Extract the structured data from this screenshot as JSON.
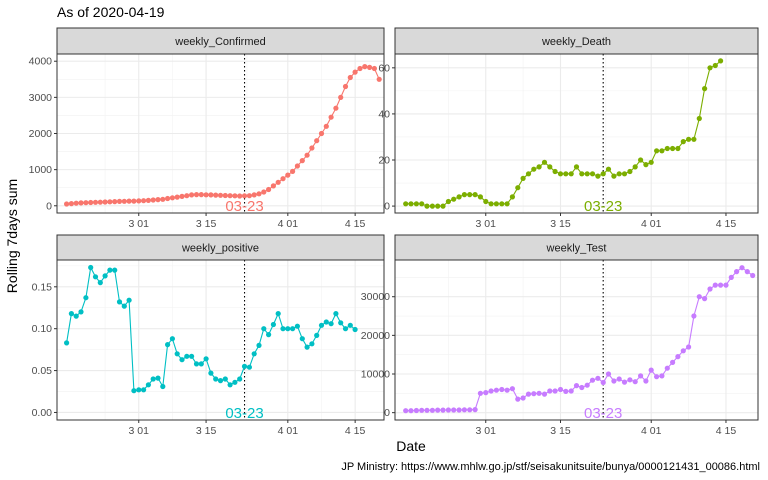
{
  "title": "As of 2020-04-19",
  "xlabel": "Date",
  "ylabel": "Rolling 7days sum",
  "caption": "JP Ministry: https://www.mhlw.go.jp/stf/seisakunitsuite/bunya/0000121431_00086.html",
  "chart_data": [
    {
      "type": "line",
      "title": "weekly_Confirmed",
      "color": "#F8766D",
      "x_start": "2020-02-15",
      "xlim": [
        "2020-02-13",
        "2020-04-21"
      ],
      "x_ticks": [
        "3 01",
        "3 15",
        "4 01",
        "4 15"
      ],
      "x_tick_dates": [
        "2020-03-01",
        "2020-03-15",
        "2020-04-01",
        "2020-04-15"
      ],
      "ylim": [
        -200,
        4200
      ],
      "y_ticks": [
        0,
        1000,
        2000,
        3000,
        4000
      ],
      "y_tick_labels": [
        "0",
        "1000",
        "2000",
        "3000",
        "4000"
      ],
      "vline_date": "2020-03-23",
      "vline_label": "03-23",
      "values": [
        50,
        60,
        70,
        80,
        85,
        90,
        95,
        100,
        105,
        110,
        115,
        120,
        125,
        130,
        130,
        135,
        140,
        150,
        160,
        170,
        180,
        200,
        220,
        240,
        260,
        280,
        300,
        310,
        310,
        305,
        300,
        295,
        290,
        285,
        280,
        275,
        270,
        275,
        280,
        300,
        330,
        380,
        450,
        550,
        650,
        750,
        850,
        950,
        1100,
        1250,
        1400,
        1600,
        1800,
        2000,
        2200,
        2450,
        2700,
        3000,
        3300,
        3550,
        3700,
        3800,
        3850,
        3830,
        3800,
        3500
      ]
    },
    {
      "type": "line",
      "title": "weekly_Death",
      "color": "#7CAE00",
      "x_start": "2020-02-15",
      "xlim": [
        "2020-02-13",
        "2020-04-21"
      ],
      "x_ticks": [
        "3 01",
        "3 15",
        "4 01",
        "4 15"
      ],
      "x_tick_dates": [
        "2020-03-01",
        "2020-03-15",
        "2020-04-01",
        "2020-04-15"
      ],
      "ylim": [
        -3,
        66
      ],
      "y_ticks": [
        0,
        20,
        40,
        60
      ],
      "y_tick_labels": [
        "0",
        "20",
        "40",
        "60"
      ],
      "vline_date": "2020-03-23",
      "vline_label": "03-23",
      "values": [
        1,
        1,
        1,
        1,
        0,
        0,
        0,
        0,
        2,
        3,
        4,
        5,
        5,
        5,
        4,
        2,
        1,
        1,
        1,
        1,
        4,
        8,
        12,
        14,
        16,
        17,
        19,
        17,
        15,
        14,
        14,
        14,
        17,
        14,
        14,
        14,
        13,
        14,
        16,
        13,
        14,
        14,
        15,
        17,
        20,
        18,
        19,
        24,
        24,
        25,
        25,
        25,
        28,
        29,
        29,
        38,
        51,
        60,
        61,
        63
      ]
    },
    {
      "type": "line",
      "title": "weekly_positive",
      "color": "#00BFC4",
      "x_start": "2020-02-15",
      "xlim": [
        "2020-02-13",
        "2020-04-21"
      ],
      "x_ticks": [
        "3 01",
        "3 15",
        "4 01",
        "4 15"
      ],
      "x_tick_dates": [
        "2020-03-01",
        "2020-03-15",
        "2020-04-01",
        "2020-04-15"
      ],
      "ylim": [
        -0.009,
        0.182
      ],
      "y_ticks": [
        0,
        0.05,
        0.1,
        0.15
      ],
      "y_tick_labels": [
        "0.00",
        "0.05",
        "0.10",
        "0.15"
      ],
      "vline_date": "2020-03-23",
      "vline_label": "03-23",
      "values": [
        0.083,
        0.118,
        0.115,
        0.12,
        0.137,
        0.173,
        0.162,
        0.155,
        0.163,
        0.17,
        0.17,
        0.132,
        0.127,
        0.134,
        0.026,
        0.027,
        0.027,
        0.033,
        0.04,
        0.041,
        0.031,
        0.081,
        0.088,
        0.07,
        0.063,
        0.067,
        0.067,
        0.058,
        0.058,
        0.064,
        0.047,
        0.04,
        0.038,
        0.04,
        0.033,
        0.036,
        0.04,
        0.055,
        0.054,
        0.07,
        0.08,
        0.1,
        0.093,
        0.105,
        0.118,
        0.1,
        0.1,
        0.1,
        0.103,
        0.088,
        0.078,
        0.082,
        0.092,
        0.104,
        0.108,
        0.106,
        0.118,
        0.107,
        0.1,
        0.104,
        0.099
      ]
    },
    {
      "type": "line",
      "title": "weekly_Test",
      "color": "#C77CFF",
      "x_start": "2020-02-15",
      "xlim": [
        "2020-02-13",
        "2020-04-21"
      ],
      "x_ticks": [
        "3 01",
        "3 15",
        "4 01",
        "4 15"
      ],
      "x_tick_dates": [
        "2020-03-01",
        "2020-03-15",
        "2020-04-01",
        "2020-04-15"
      ],
      "ylim": [
        -1900,
        39500
      ],
      "y_ticks": [
        0,
        10000,
        20000,
        30000
      ],
      "y_tick_labels": [
        "0",
        "10000",
        "20000",
        "30000"
      ],
      "vline_date": "2020-03-23",
      "vline_label": "03-23",
      "values": [
        500,
        500,
        550,
        600,
        600,
        600,
        650,
        650,
        700,
        700,
        700,
        750,
        750,
        800,
        5000,
        5200,
        5600,
        5800,
        6000,
        5800,
        6200,
        3500,
        3800,
        4800,
        4900,
        5000,
        4800,
        5600,
        5600,
        6000,
        5500,
        5600,
        7000,
        6500,
        7100,
        8400,
        8900,
        7800,
        10000,
        8200,
        8700,
        7900,
        8500,
        8000,
        9500,
        8200,
        11000,
        9300,
        9500,
        11500,
        13000,
        14500,
        16000,
        17000,
        25000,
        30000,
        29500,
        32000,
        33000,
        33000,
        33000,
        35000,
        36500,
        37500,
        36500,
        35500
      ]
    }
  ]
}
